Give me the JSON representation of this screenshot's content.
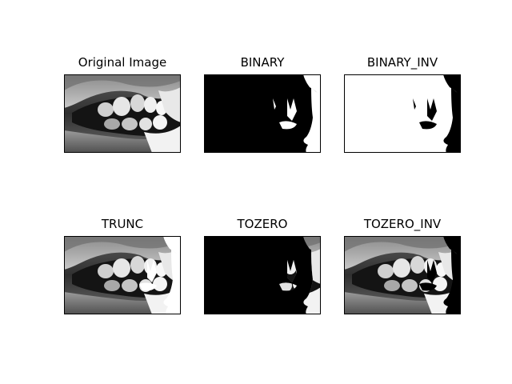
{
  "figure": {
    "panels": [
      {
        "title": "Original Image",
        "kind": "original"
      },
      {
        "title": "BINARY",
        "kind": "binary"
      },
      {
        "title": "BINARY_INV",
        "kind": "binary_inv"
      },
      {
        "title": "TRUNC",
        "kind": "trunc"
      },
      {
        "title": "TOZERO",
        "kind": "tozero"
      },
      {
        "title": "TOZERO_INV",
        "kind": "tozero_inv"
      }
    ]
  }
}
